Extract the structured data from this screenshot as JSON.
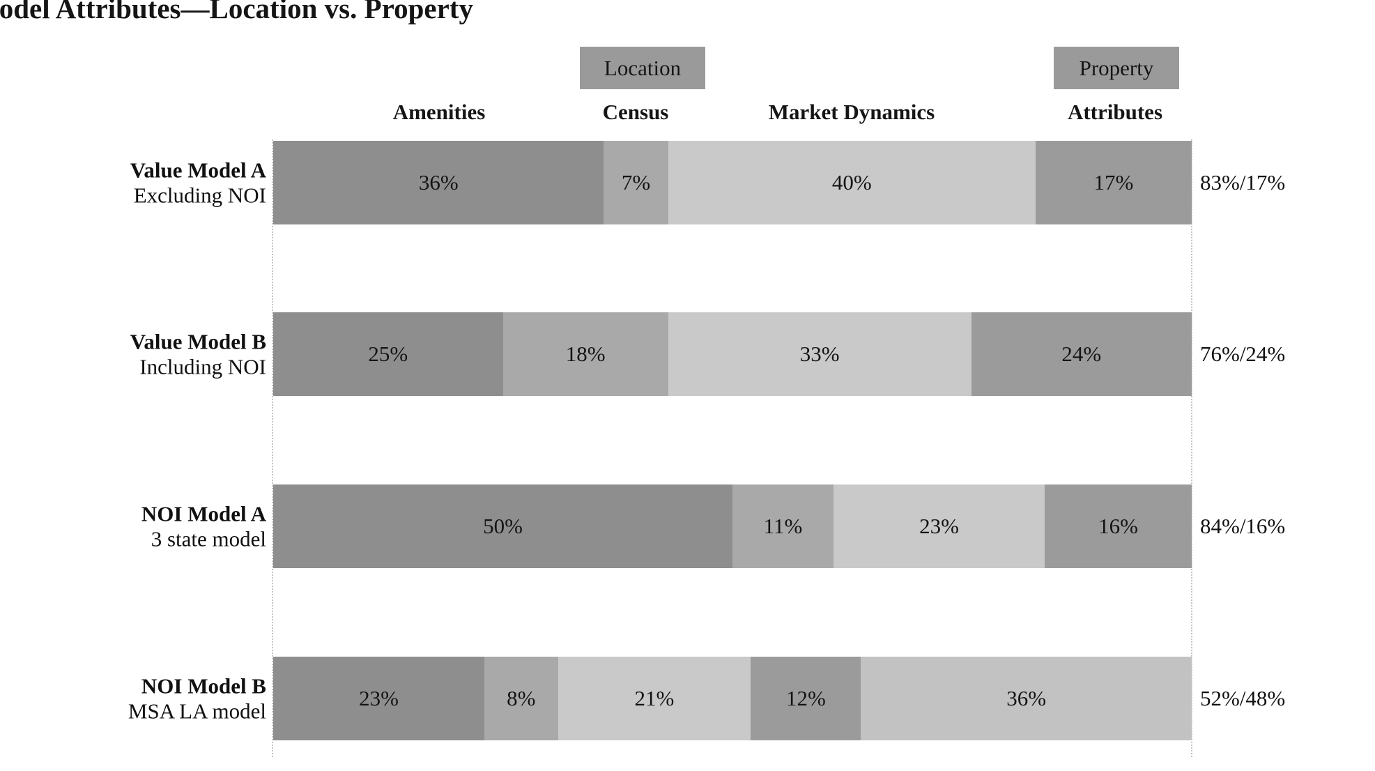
{
  "title": "Model Attributes—Location vs. Property",
  "legend": {
    "location": "Location",
    "property": "Property"
  },
  "column_headers": {
    "amenities": "Amenities",
    "census": "Census",
    "market_dynamics": "Market Dynamics",
    "attributes": "Attributes"
  },
  "colors": {
    "amenities": "#8e8e8e",
    "census": "#a9a9a9",
    "market_dynamics": "#c9c9c9",
    "attributes": "#9b9b9b",
    "property_extra": "#c2c2c2",
    "legend_box": "#9a9a9a",
    "dotted_line": "#c4c4c4",
    "text": "#141414"
  },
  "chart_data": {
    "type": "bar",
    "subtype": "horizontal-stacked-percentage",
    "title": "Model Attributes—Location vs. Property",
    "legend_position": "top",
    "groups": [
      {
        "label": "Location",
        "columns": [
          "Amenities",
          "Census",
          "Market Dynamics"
        ]
      },
      {
        "label": "Property",
        "columns": [
          "Attributes"
        ]
      }
    ],
    "x_range": [
      0,
      100
    ],
    "rows": [
      {
        "name": "Value Model A",
        "subtitle": "Excluding NOI",
        "total": "83%/17%",
        "segments": [
          {
            "value": 36,
            "label": "36%",
            "category": "amenities"
          },
          {
            "value": 7,
            "label": "7%",
            "category": "census"
          },
          {
            "value": 40,
            "label": "40%",
            "category": "market_dynamics"
          },
          {
            "value": 17,
            "label": "17%",
            "category": "attributes"
          }
        ]
      },
      {
        "name": "Value Model B",
        "subtitle": "Including NOI",
        "total": "76%/24%",
        "segments": [
          {
            "value": 25,
            "label": "25%",
            "category": "amenities"
          },
          {
            "value": 18,
            "label": "18%",
            "category": "census"
          },
          {
            "value": 33,
            "label": "33%",
            "category": "market_dynamics"
          },
          {
            "value": 24,
            "label": "24%",
            "category": "attributes"
          }
        ]
      },
      {
        "name": "NOI Model A",
        "subtitle": "3 state model",
        "total": "84%/16%",
        "segments": [
          {
            "value": 50,
            "label": "50%",
            "category": "amenities"
          },
          {
            "value": 11,
            "label": "11%",
            "category": "census"
          },
          {
            "value": 23,
            "label": "23%",
            "category": "market_dynamics"
          },
          {
            "value": 16,
            "label": "16%",
            "category": "attributes"
          }
        ]
      },
      {
        "name": "NOI Model B",
        "subtitle": "MSA LA model",
        "total": "52%/48%",
        "segments": [
          {
            "value": 23,
            "label": "23%",
            "category": "amenities"
          },
          {
            "value": 8,
            "label": "8%",
            "category": "census"
          },
          {
            "value": 21,
            "label": "21%",
            "category": "market_dynamics"
          },
          {
            "value": 12,
            "label": "12%",
            "category": "attributes"
          },
          {
            "value": 36,
            "label": "36%",
            "category": "property_extra"
          }
        ]
      }
    ]
  }
}
